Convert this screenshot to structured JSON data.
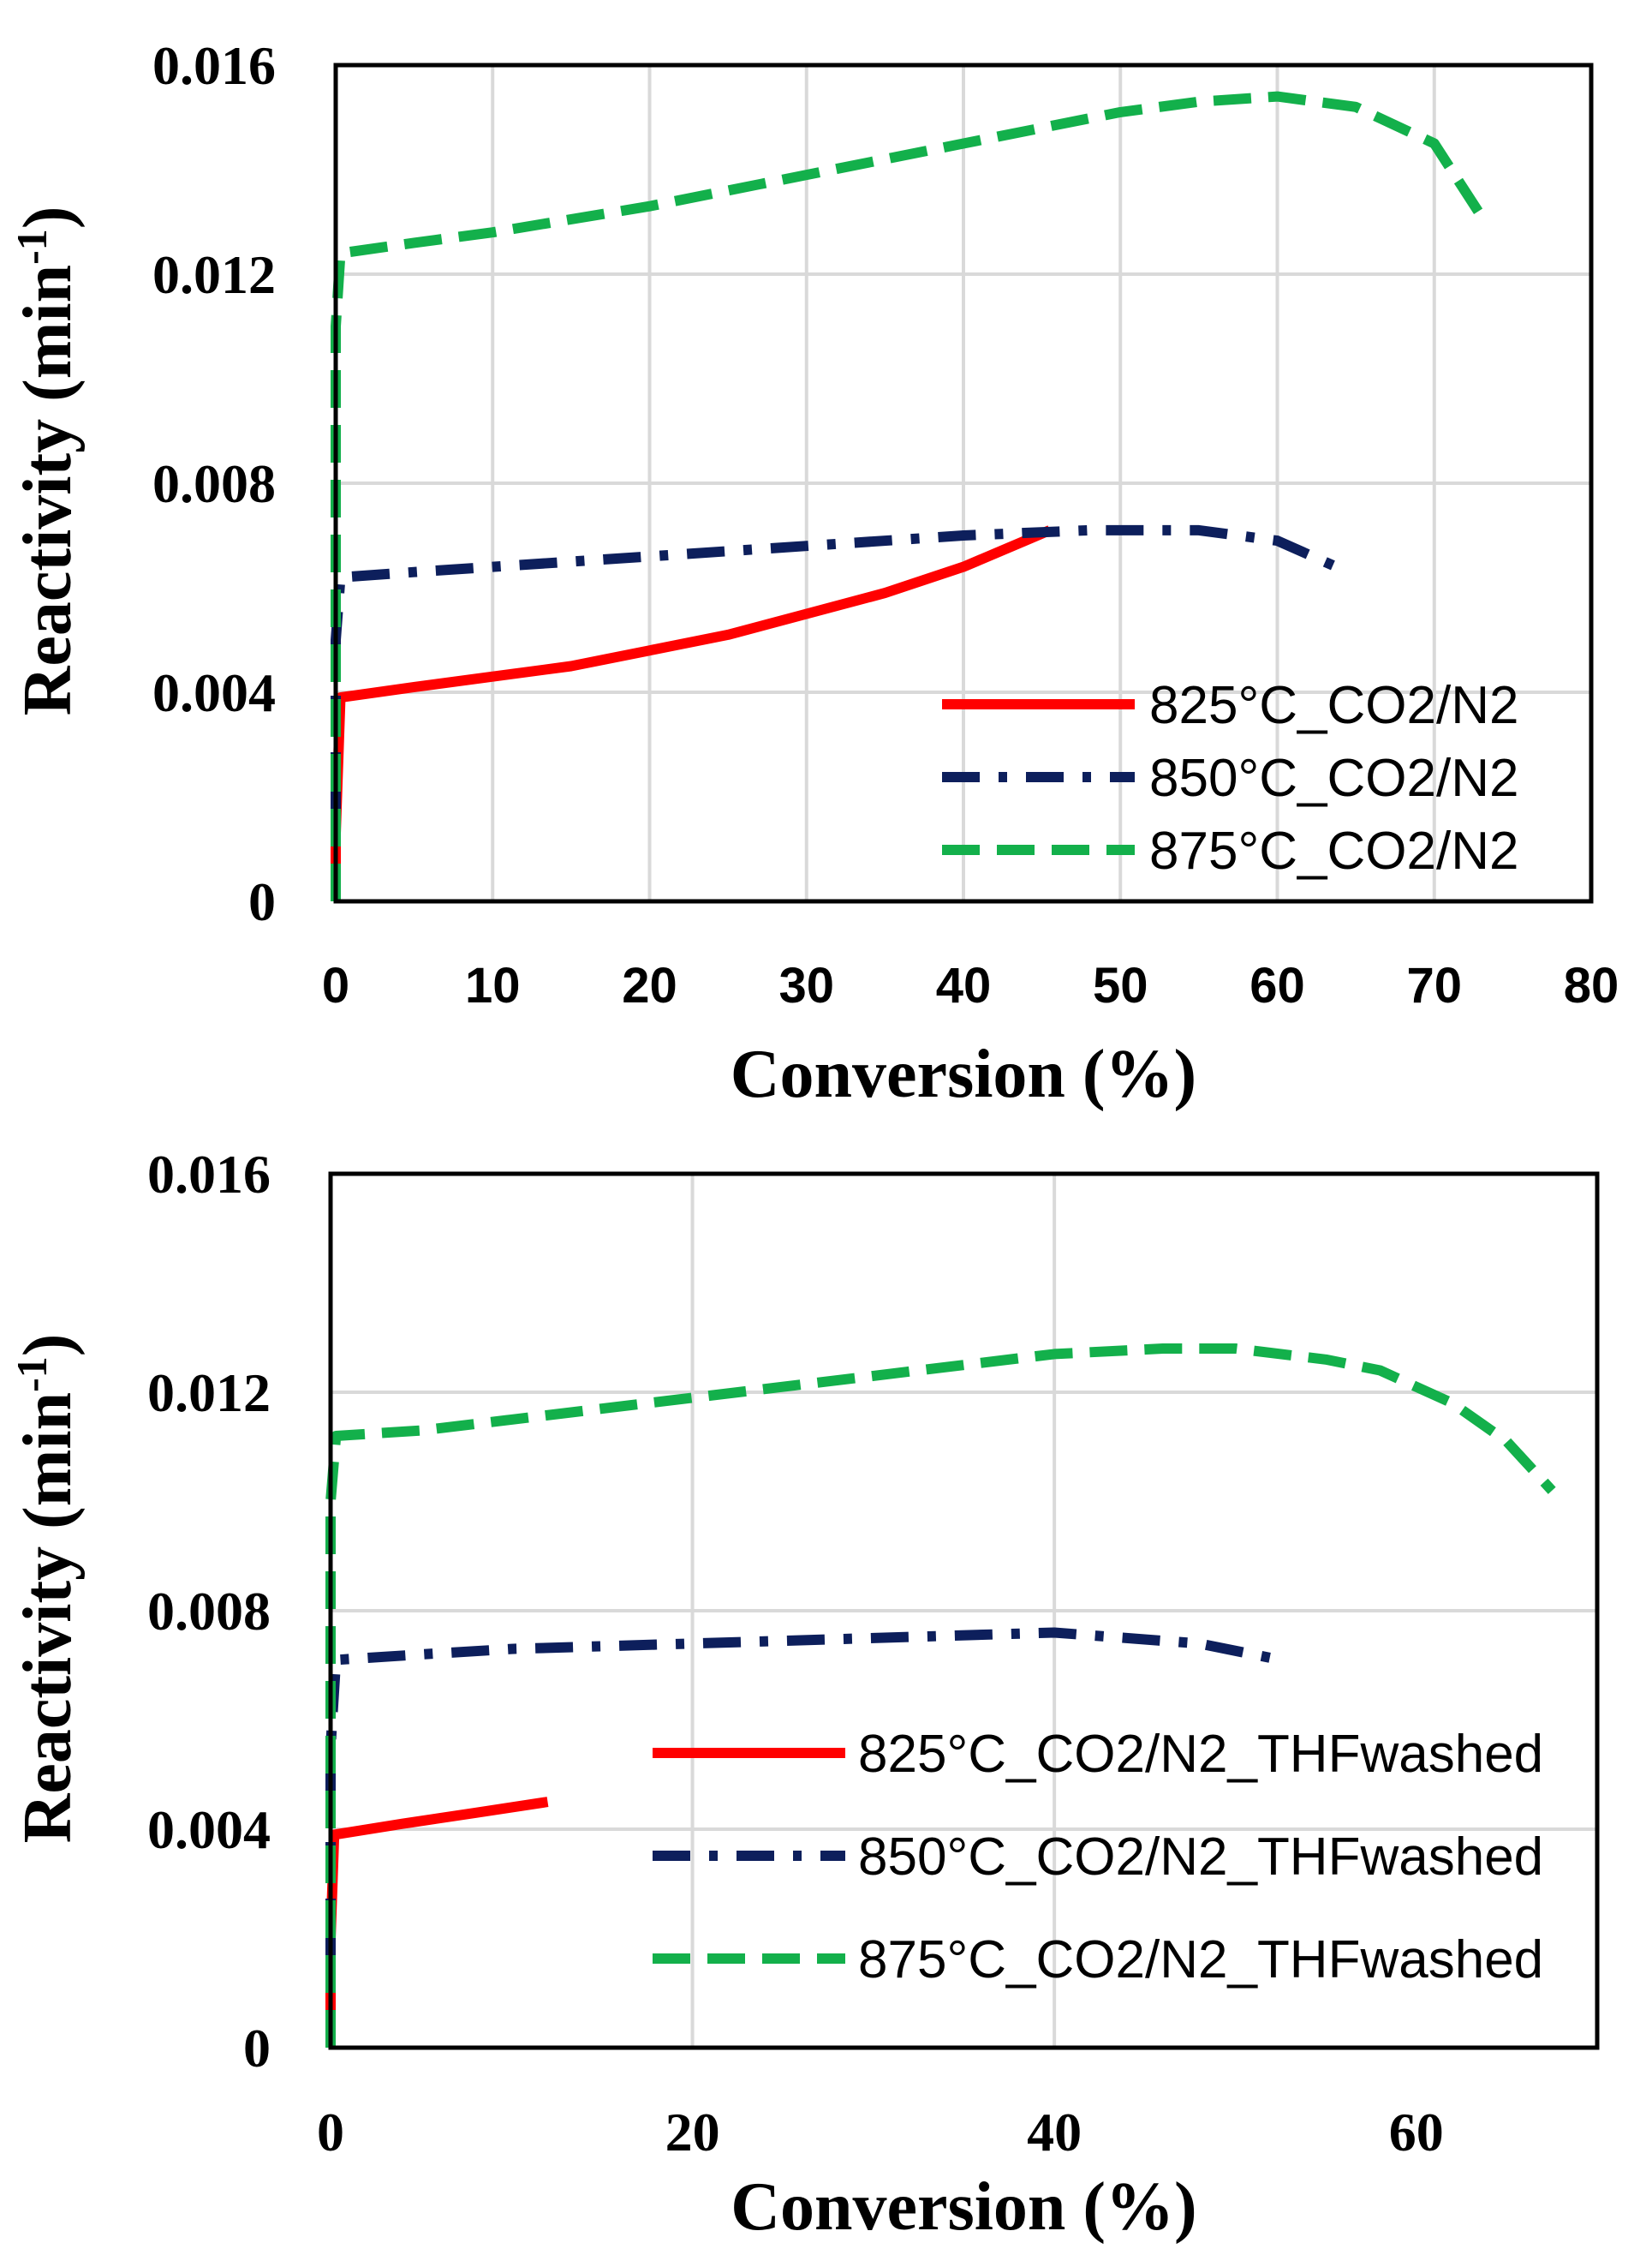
{
  "colors": {
    "825": "#ff0000",
    "850": "#0d1f5c",
    "875": "#13b04b"
  },
  "chart_data": [
    {
      "type": "line",
      "panel": "top",
      "xlabel": "Conversion (%)",
      "ylabel": "Reactivity (min",
      "ylabel_sup": "-1",
      "ylabel_end": ")",
      "xlim": [
        0,
        80
      ],
      "ylim": [
        0,
        0.016
      ],
      "xticks": [
        0,
        10,
        20,
        30,
        40,
        50,
        60,
        70,
        80
      ],
      "xtick_labels": [
        "0",
        "10",
        "20",
        "30",
        "40",
        "50",
        "60",
        "70",
        "80"
      ],
      "yticks": [
        0,
        0.004,
        0.008,
        0.012,
        0.016
      ],
      "ytick_labels": [
        "0",
        "0.004",
        "0.008",
        "0.012",
        "0.016"
      ],
      "grid": true,
      "legend_position": "bottom-right",
      "series": [
        {
          "name": "825°C_CO2/N2",
          "key": "825",
          "style": "solid",
          "x": [
            0,
            0,
            0.3,
            5,
            10,
            15,
            20,
            25,
            30,
            35,
            40,
            45.5
          ],
          "y": [
            0,
            0.0013,
            0.0039,
            0.0041,
            0.0043,
            0.0045,
            0.0048,
            0.0051,
            0.0055,
            0.0059,
            0.0064,
            0.0071
          ]
        },
        {
          "name": "850°C_CO2/N2",
          "key": "850",
          "style": "dashdot",
          "x": [
            0,
            0,
            0.3,
            5,
            10,
            20,
            30,
            40,
            48,
            55,
            60,
            64.5
          ],
          "y": [
            0,
            0.005,
            0.0062,
            0.0063,
            0.0064,
            0.0066,
            0.0068,
            0.007,
            0.0071,
            0.0071,
            0.0069,
            0.0063
          ]
        },
        {
          "name": "875°C_CO2/N2",
          "key": "875",
          "style": "dashed",
          "x": [
            0,
            0,
            0.3,
            5,
            10,
            20,
            30,
            40,
            50,
            55,
            60,
            65,
            70,
            72.8
          ],
          "y": [
            0,
            0.011,
            0.0124,
            0.0126,
            0.0128,
            0.0133,
            0.0139,
            0.0145,
            0.0151,
            0.0153,
            0.0154,
            0.0152,
            0.0145,
            0.0132
          ]
        }
      ]
    },
    {
      "type": "line",
      "panel": "bottom",
      "xlabel": "Conversion (%)",
      "ylabel": "Reactivity (min",
      "ylabel_sup": "-1",
      "ylabel_end": ")",
      "xlim": [
        0,
        70
      ],
      "ylim": [
        0,
        0.016
      ],
      "xticks": [
        0,
        20,
        40,
        60
      ],
      "xtick_labels": [
        "0",
        "20",
        "40",
        "60"
      ],
      "yticks": [
        0,
        0.004,
        0.008,
        0.012,
        0.016
      ],
      "ytick_labels": [
        "0",
        "0.004",
        "0.008",
        "0.012",
        "0.016"
      ],
      "grid": true,
      "legend_position": "bottom-right",
      "series": [
        {
          "name": "825°C_CO2/N2_THFwashed",
          "key": "825",
          "style": "solid",
          "x": [
            0,
            0,
            0.2,
            4,
            8,
            12
          ],
          "y": [
            0,
            0.002,
            0.0039,
            0.0041,
            0.0043,
            0.0045
          ]
        },
        {
          "name": "850°C_CO2/N2_THFwashed",
          "key": "850",
          "style": "dashdot",
          "x": [
            0,
            0,
            0.3,
            5,
            10,
            20,
            30,
            40,
            48,
            52.5
          ],
          "y": [
            0,
            0.0055,
            0.0071,
            0.0072,
            0.0073,
            0.0074,
            0.0075,
            0.0076,
            0.0074,
            0.0071
          ]
        },
        {
          "name": "875°C_CO2/N2_THFwashed",
          "key": "875",
          "style": "dashed",
          "x": [
            0,
            0,
            0.3,
            5,
            10,
            20,
            30,
            40,
            46,
            50,
            55,
            58,
            62,
            65,
            67.5
          ],
          "y": [
            0,
            0.01,
            0.0112,
            0.0113,
            0.0115,
            0.0119,
            0.0123,
            0.0127,
            0.0128,
            0.0128,
            0.0126,
            0.0124,
            0.0118,
            0.0111,
            0.0102
          ]
        }
      ]
    }
  ]
}
